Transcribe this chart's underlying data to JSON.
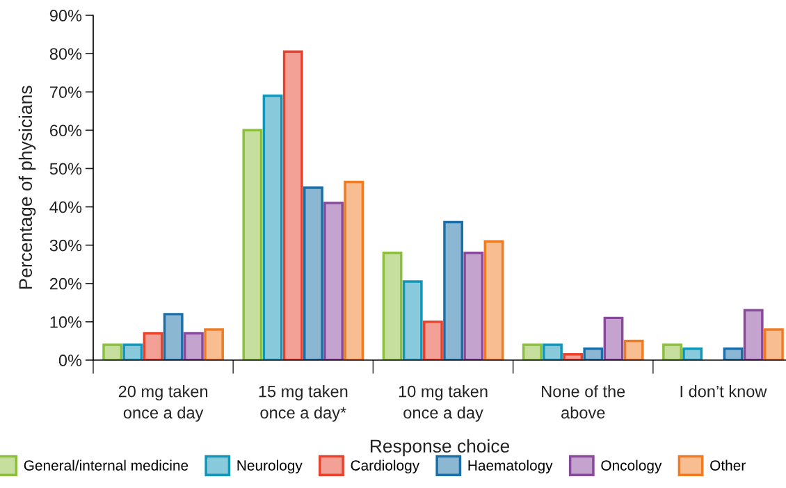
{
  "chart_data": {
    "type": "bar",
    "xlabel": "Response choice",
    "ylabel": "Percentage of physicians",
    "categories": [
      "20 mg taken\nonce a day",
      "15 mg taken\nonce a day*",
      "10 mg taken\nonce a day",
      "None of the\nabove",
      "I don’t know"
    ],
    "series": [
      {
        "name": "General/internal medicine",
        "color": "#8dbf3f",
        "values": [
          4,
          60,
          28,
          4,
          4
        ]
      },
      {
        "name": "Neurology",
        "color": "#1195b8",
        "values": [
          4,
          69,
          20.5,
          4,
          3
        ]
      },
      {
        "name": "Cardiology",
        "color": "#e8412c",
        "values": [
          7,
          80.5,
          10,
          1.5,
          null
        ]
      },
      {
        "name": "Haematology",
        "color": "#1a6fa8",
        "values": [
          12,
          45,
          36,
          3,
          3
        ]
      },
      {
        "name": "Oncology",
        "color": "#8a4a9c",
        "values": [
          7,
          41,
          28,
          11,
          13
        ]
      },
      {
        "name": "Other",
        "color": "#f07b22",
        "values": [
          8,
          46.5,
          31,
          5,
          8
        ]
      }
    ],
    "ylim": [
      0,
      90
    ],
    "yticks": [
      {
        "value": 0,
        "label": "0%"
      },
      {
        "value": 10,
        "label": "10%"
      },
      {
        "value": 20,
        "label": "20%"
      },
      {
        "value": 30,
        "label": "30%"
      },
      {
        "value": 40,
        "label": "40%"
      },
      {
        "value": 50,
        "label": "50%"
      },
      {
        "value": 60,
        "label": "60%"
      },
      {
        "value": 70,
        "label": "70%"
      },
      {
        "value": 80,
        "label": "80%"
      },
      {
        "value": 90,
        "label": "90%"
      }
    ],
    "legend": "bottom"
  }
}
